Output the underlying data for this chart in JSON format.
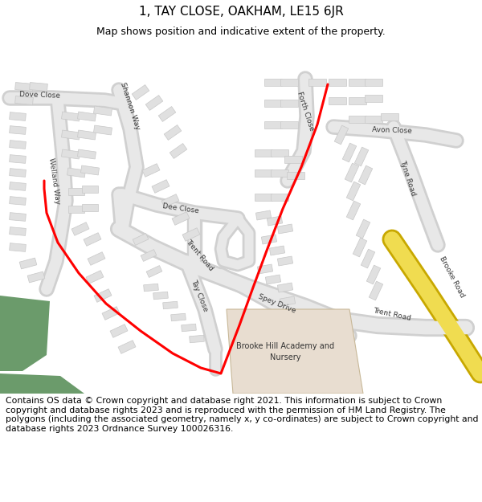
{
  "title": "1, TAY CLOSE, OAKHAM, LE15 6JR",
  "subtitle": "Map shows position and indicative extent of the property.",
  "footer_line1": "Contains OS data © Crown copyright and database right 2021. This information is subject to Crown copyright and database rights 2023 and is reproduced with the permission of",
  "footer_line2": "HM Land Registry. The polygons (including the associated geometry, namely x, y co-ordinates) are subject to Crown copyright and database rights 2023 Ordnance Survey 100026316.",
  "map_bg": "#ffffff",
  "road_fill": "#e8e8e8",
  "road_edge": "#d0d0d0",
  "bldg_fill": "#e0e0e0",
  "bldg_edge": "#c8c8c8",
  "school_fill": "#e8ddd0",
  "school_edge": "#c8b898",
  "green_fill": "#6b9b6b",
  "yellow_fill": "#f0dc50",
  "yellow_edge": "#c8a800",
  "red_color": "#ff0000",
  "title_fs": 11,
  "sub_fs": 9,
  "footer_fs": 7.8,
  "label_fs": 6.5,
  "road_lw_outer": 14,
  "road_lw_inner": 10
}
